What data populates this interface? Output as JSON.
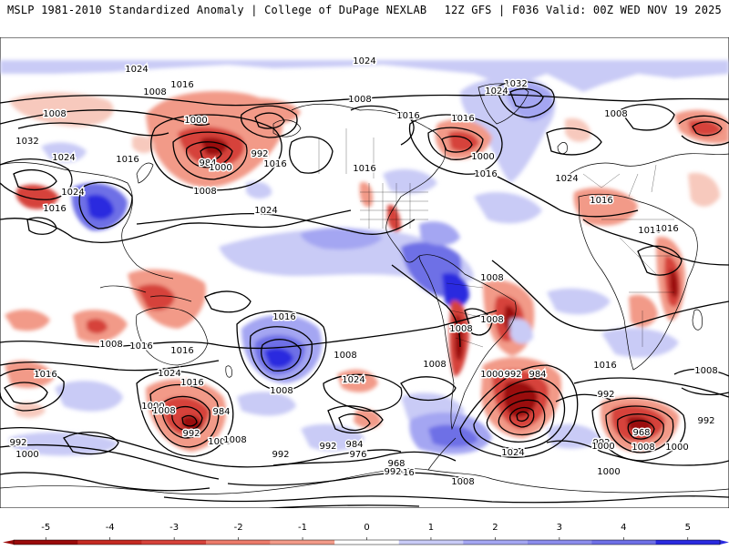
{
  "header": {
    "left_title": "MSLP 1981-2010 Standardized Anomaly | College of DuPage NEXLAB",
    "right_title": "12Z GFS | F036 Valid: 00Z WED NOV 19 2025"
  },
  "colors": {
    "neg_strong": "#9a0a0a",
    "neg_mid": "#d6423a",
    "neg_light": "#f29a88",
    "neg_faint": "#f7c9bd",
    "pos_faint": "#c9cbf6",
    "pos_light": "#a4a6f2",
    "pos_mid": "#6e6fe6",
    "pos_strong": "#2a2adf"
  },
  "isobars": [
    {
      "label": "1024"
    },
    {
      "label": "1024"
    },
    {
      "label": "1016"
    },
    {
      "label": "1008"
    },
    {
      "label": "1008"
    },
    {
      "label": "1032"
    },
    {
      "label": "1024"
    },
    {
      "label": "1016"
    },
    {
      "label": "1024"
    },
    {
      "label": "1016"
    },
    {
      "label": "1000"
    },
    {
      "label": "984"
    },
    {
      "label": "992"
    },
    {
      "label": "1000"
    },
    {
      "label": "1016"
    },
    {
      "label": "1008"
    },
    {
      "label": "1024"
    },
    {
      "label": "1008"
    },
    {
      "label": "1016"
    },
    {
      "label": "1016"
    },
    {
      "label": "1032"
    },
    {
      "label": "1024"
    },
    {
      "label": "1016"
    },
    {
      "label": "1000"
    },
    {
      "label": "1016"
    },
    {
      "label": "1024"
    },
    {
      "label": "1008"
    },
    {
      "label": "1016"
    },
    {
      "label": "1016"
    },
    {
      "label": "1016"
    },
    {
      "label": "1008"
    },
    {
      "label": "1008"
    },
    {
      "label": "1008"
    },
    {
      "label": "1008"
    },
    {
      "label": "1016"
    },
    {
      "label": "1016"
    },
    {
      "label": "1016"
    },
    {
      "label": "1008"
    },
    {
      "label": "1016"
    },
    {
      "label": "1008"
    },
    {
      "label": "1008"
    },
    {
      "label": "1024"
    },
    {
      "label": "1024"
    },
    {
      "label": "1016"
    },
    {
      "label": "1000"
    },
    {
      "label": "1008"
    },
    {
      "label": "984"
    },
    {
      "label": "992"
    },
    {
      "label": "1000"
    },
    {
      "label": "1008"
    },
    {
      "label": "992"
    },
    {
      "label": "1000"
    },
    {
      "label": "992"
    },
    {
      "label": "976"
    },
    {
      "label": "968"
    },
    {
      "label": "992"
    },
    {
      "label": "984"
    },
    {
      "label": "1008"
    },
    {
      "label": "1016"
    },
    {
      "label": "1024"
    },
    {
      "label": "992"
    },
    {
      "label": "1000"
    },
    {
      "label": "992"
    },
    {
      "label": "984"
    },
    {
      "label": "992"
    },
    {
      "label": "992"
    },
    {
      "label": "1000"
    },
    {
      "label": "1008"
    },
    {
      "label": "1000"
    },
    {
      "label": "992"
    },
    {
      "label": "968"
    },
    {
      "label": "1008"
    },
    {
      "label": "1016"
    },
    {
      "label": "992"
    },
    {
      "label": "1000"
    }
  ],
  "colorbar": {
    "ticks": [
      "-5",
      "-4",
      "-3",
      "-2",
      "-1",
      "0",
      "1",
      "2",
      "3",
      "4",
      "5"
    ],
    "range": [
      -5.5,
      5.5
    ]
  }
}
